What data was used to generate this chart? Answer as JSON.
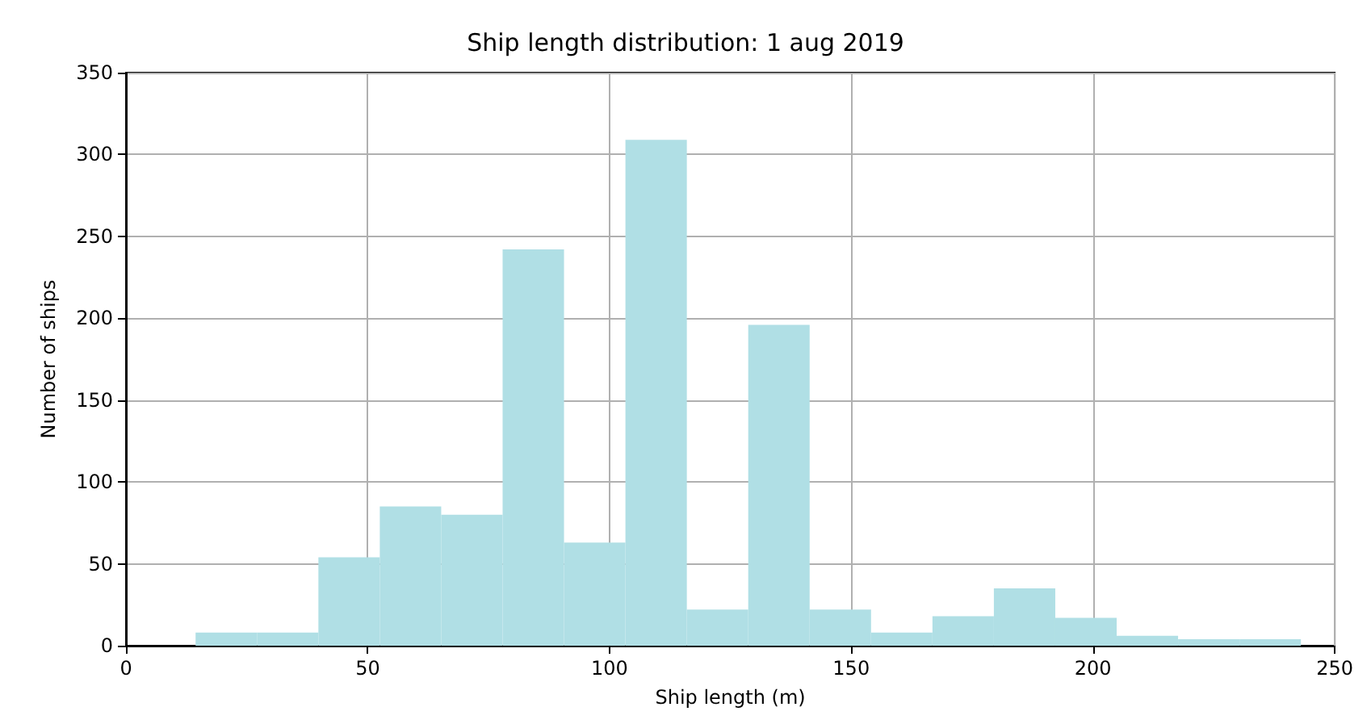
{
  "chart_data": {
    "type": "histogram",
    "title": "Ship length distribution: 1 aug 2019",
    "xlabel": "Ship length (m)",
    "ylabel": "Number of ships",
    "bins": [
      14.4,
      27.1,
      39.8,
      52.5,
      65.2,
      77.9,
      90.6,
      103.3,
      116.0,
      128.7,
      141.4,
      154.1,
      166.8,
      179.5,
      192.2,
      204.9,
      217.6,
      230.3,
      243.0
    ],
    "values": [
      8,
      8,
      54,
      85,
      80,
      242,
      63,
      309,
      22,
      196,
      22,
      8,
      18,
      35,
      17,
      6,
      4,
      4
    ],
    "color": "#b0dfe5",
    "xlim": [
      0,
      250
    ],
    "xticks": [
      0,
      50,
      100,
      150,
      200,
      250
    ],
    "ylim": [
      0,
      350
    ],
    "yticks": [
      0,
      50,
      100,
      150,
      200,
      250,
      300,
      350
    ],
    "grid": true
  }
}
